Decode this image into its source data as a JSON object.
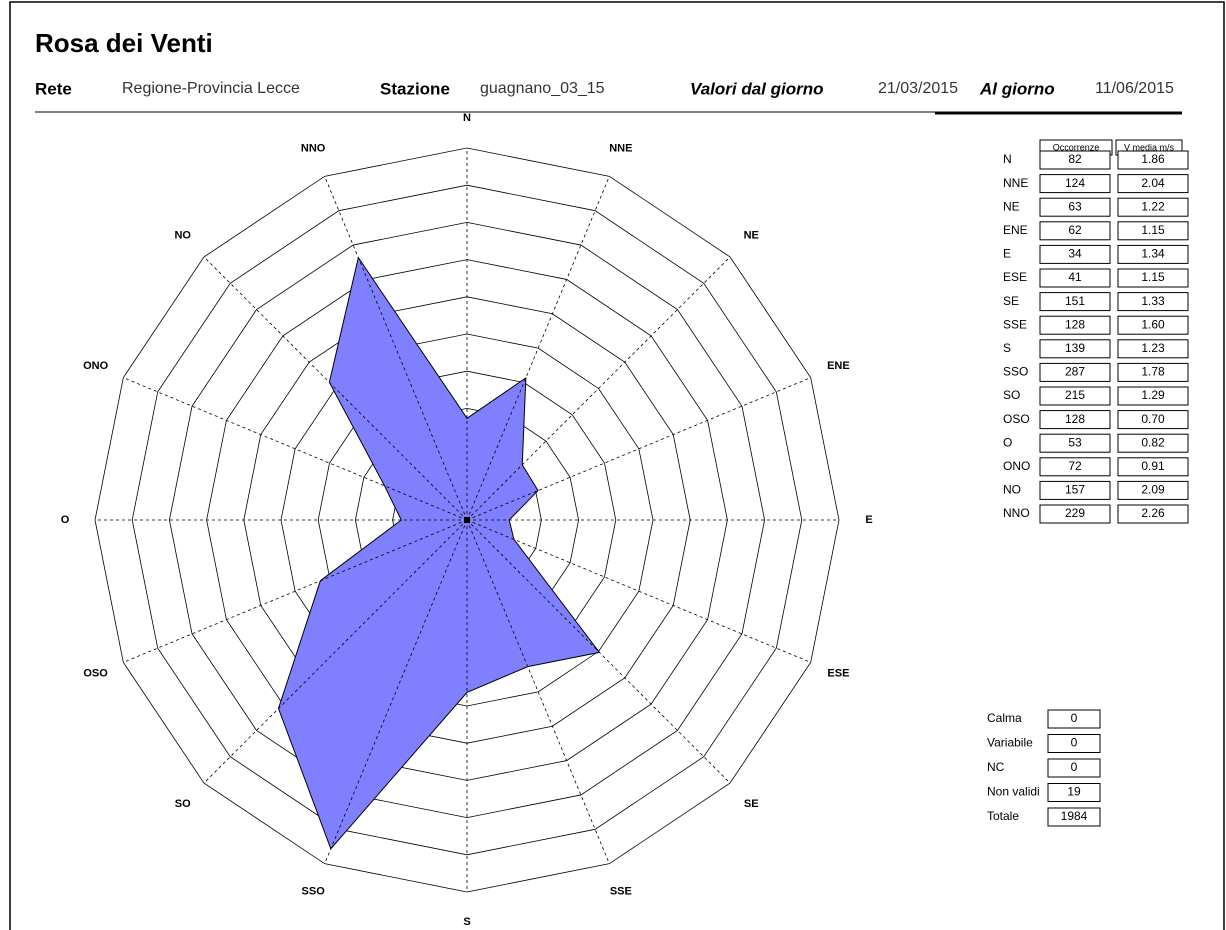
{
  "header": {
    "title": "Rosa dei Venti",
    "fields": [
      {
        "label": "Rete",
        "value": "Regione-Provincia Lecce"
      },
      {
        "label": "Stazione",
        "value": "guagnano_03_15"
      },
      {
        "label": "Valori dal giorno",
        "value": "21/03/2015"
      },
      {
        "label": "Al giorno",
        "value": "11/06/2015"
      }
    ]
  },
  "chart_data": {
    "type": "radar",
    "categories": [
      "N",
      "NNE",
      "NE",
      "ENE",
      "E",
      "ESE",
      "SE",
      "SSE",
      "S",
      "SSO",
      "SO",
      "OSO",
      "O",
      "ONO",
      "NO",
      "NNO"
    ],
    "values": [
      82,
      124,
      63,
      62,
      34,
      41,
      151,
      128,
      139,
      287,
      215,
      128,
      53,
      72,
      157,
      229
    ],
    "color": "#8080ff",
    "ylim": [
      0,
      300
    ],
    "yticks": [
      0,
      30,
      60,
      90,
      120,
      150,
      180,
      210,
      240,
      270,
      300
    ]
  },
  "table": {
    "columns": [
      "Occorrenze",
      "V media m/s"
    ],
    "v_media": [
      "1.86",
      "2.04",
      "1.22",
      "1.15",
      "1.34",
      "1.15",
      "1.33",
      "1.60",
      "1.23",
      "1.78",
      "1.29",
      "0.70",
      "0.82",
      "0.91",
      "2.09",
      "2.26"
    ]
  },
  "summary": [
    {
      "label": "Calma",
      "value": 0
    },
    {
      "label": "Variabile",
      "value": 0
    },
    {
      "label": "NC",
      "value": 0
    },
    {
      "label": "Non validi",
      "value": 19
    },
    {
      "label": "Totale",
      "value": 1984
    }
  ]
}
